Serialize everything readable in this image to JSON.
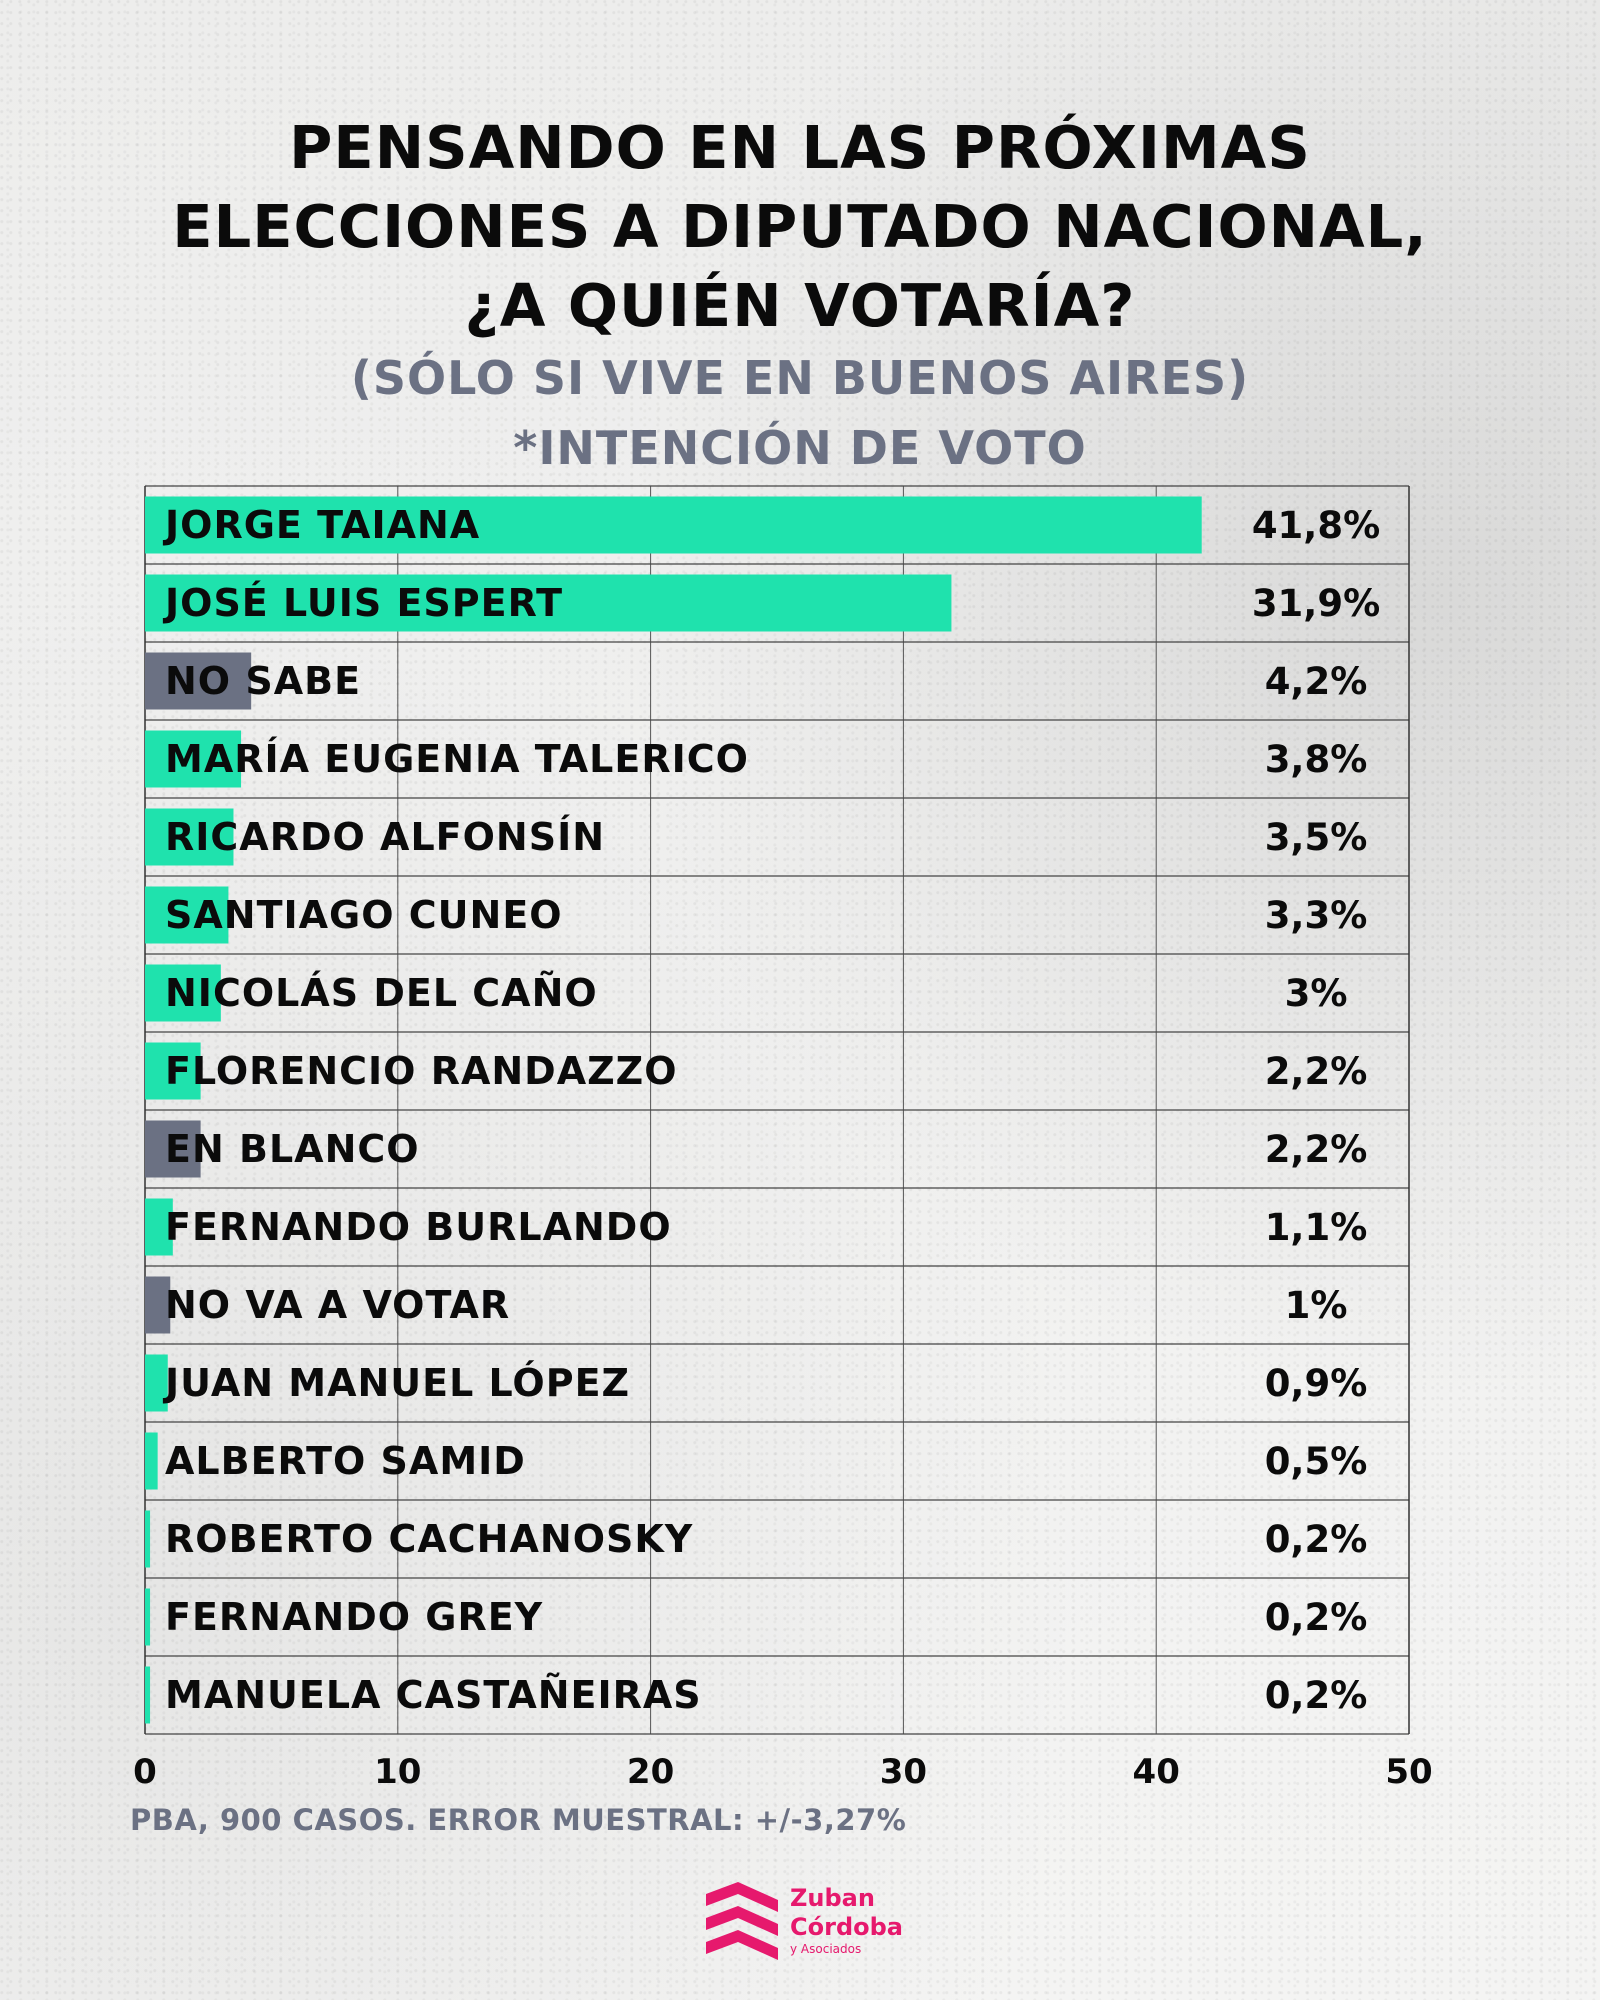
{
  "header": {
    "title": "PENSANDO EN LAS PRÓXIMAS\nELECCIONES A DIPUTADO NACIONAL,\n¿A QUIÉN VOTARÍA?",
    "subtitle": "(SÓLO SI VIVE EN BUENOS AIRES)\n*INTENCIÓN DE VOTO"
  },
  "chart_data": {
    "type": "bar",
    "orientation": "horizontal",
    "categories": [
      "JORGE TAIANA",
      "JOSÉ LUIS ESPERT",
      "NO SABE",
      "MARÍA EUGENIA TALERICO",
      "RICARDO ALFONSÍN",
      "SANTIAGO CUNEO",
      "NICOLÁS DEL CAÑO",
      "FLORENCIO RANDAZZO",
      "EN BLANCO",
      "FERNANDO BURLANDO",
      "NO VA A VOTAR",
      "JUAN MANUEL LÓPEZ",
      "ALBERTO SAMID",
      "ROBERTO CACHANOSKY",
      "FERNANDO GREY",
      "MANUELA CASTAÑEIRAS"
    ],
    "values": [
      41.8,
      31.9,
      4.2,
      3.8,
      3.5,
      3.3,
      3,
      2.2,
      2.2,
      1.1,
      1,
      0.9,
      0.5,
      0.2,
      0.2,
      0.2
    ],
    "value_labels": [
      "41,8%",
      "31,9%",
      "4,2%",
      "3,8%",
      "3,5%",
      "3,3%",
      "3%",
      "2,2%",
      "2,2%",
      "1,1%",
      "1%",
      "0,9%",
      "0,5%",
      "0,2%",
      "0,2%",
      "0,2%"
    ],
    "bar_colors": [
      "#1fe2ad",
      "#1fe2ad",
      "#6b7183",
      "#1fe2ad",
      "#1fe2ad",
      "#1fe2ad",
      "#1fe2ad",
      "#1fe2ad",
      "#6b7183",
      "#1fe2ad",
      "#6b7183",
      "#1fe2ad",
      "#1fe2ad",
      "#1fe2ad",
      "#1fe2ad",
      "#1fe2ad"
    ],
    "xlim": [
      0,
      50
    ],
    "xticks": [
      "0",
      "10",
      "20",
      "30",
      "40",
      "50"
    ],
    "grid": true
  },
  "footer": {
    "note": "PBA, 900 CASOS. ERROR MUESTRAL: +/-3,27%"
  },
  "logo": {
    "line1": "Zuban",
    "line2": "Córdoba",
    "line3": "y Asociados",
    "color": "#e6196d"
  }
}
